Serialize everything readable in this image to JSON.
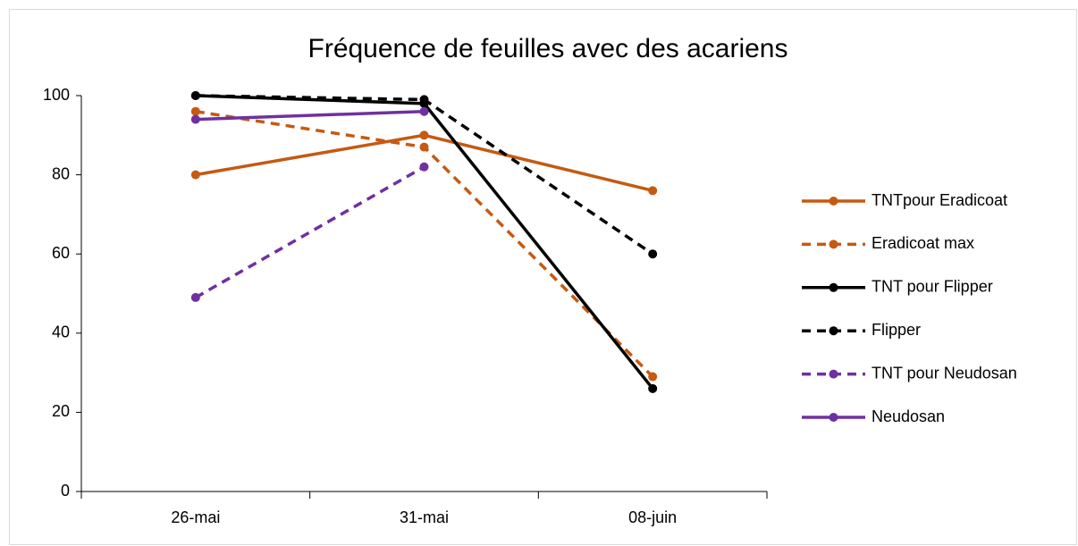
{
  "chart_data": {
    "type": "line",
    "title": "Fréquence de feuilles avec des acariens",
    "categories": [
      "26-mai",
      "31-mai",
      "08-juin"
    ],
    "series": [
      {
        "name": "TNTpour Eradicoat",
        "color": "#c55a11",
        "dashed": false,
        "values": [
          80,
          90,
          76
        ]
      },
      {
        "name": "Eradicoat max",
        "color": "#c55a11",
        "dashed": true,
        "values": [
          96,
          87,
          29
        ]
      },
      {
        "name": "TNT pour Flipper",
        "color": "#000000",
        "dashed": false,
        "values": [
          100,
          98,
          26
        ]
      },
      {
        "name": "Flipper",
        "color": "#000000",
        "dashed": true,
        "values": [
          100,
          99,
          60
        ]
      },
      {
        "name": "TNT pour Neudosan",
        "color": "#7030a0",
        "dashed": true,
        "values": [
          49,
          82,
          null
        ]
      },
      {
        "name": "Neudosan",
        "color": "#7030a0",
        "dashed": false,
        "values": [
          94,
          96,
          null
        ]
      }
    ],
    "ylim": [
      0,
      100
    ],
    "yticks": [
      0,
      20,
      40,
      60,
      80,
      100
    ],
    "grid": false,
    "legend": "right"
  }
}
